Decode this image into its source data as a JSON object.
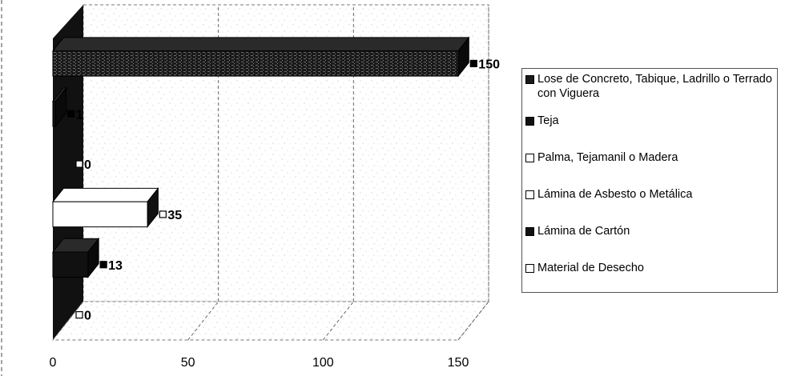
{
  "chart_data": {
    "type": "bar",
    "orientation": "horizontal",
    "three_d": true,
    "categories": [
      "Lose de Concreto, Tabique, Ladrillo o Terrado con Viguera",
      "Teja",
      "Palma, Tejamanil o Madera",
      "Lámina de Asbesto o Metálica",
      "Lámina de Cartón",
      "Material de Desecho"
    ],
    "values": [
      150,
      1,
      0,
      35,
      13,
      0
    ],
    "value_labels": [
      "150",
      "1",
      "0",
      "35",
      "13",
      "0"
    ],
    "colors": [
      "#1a1a1a",
      "#111111",
      "#ffffff",
      "#ffffff",
      "#111111",
      "#ffffff"
    ],
    "xlim": [
      0,
      150
    ],
    "xticks": [
      "0",
      "50",
      "100",
      "150"
    ],
    "grid": true,
    "legend_position": "right"
  }
}
